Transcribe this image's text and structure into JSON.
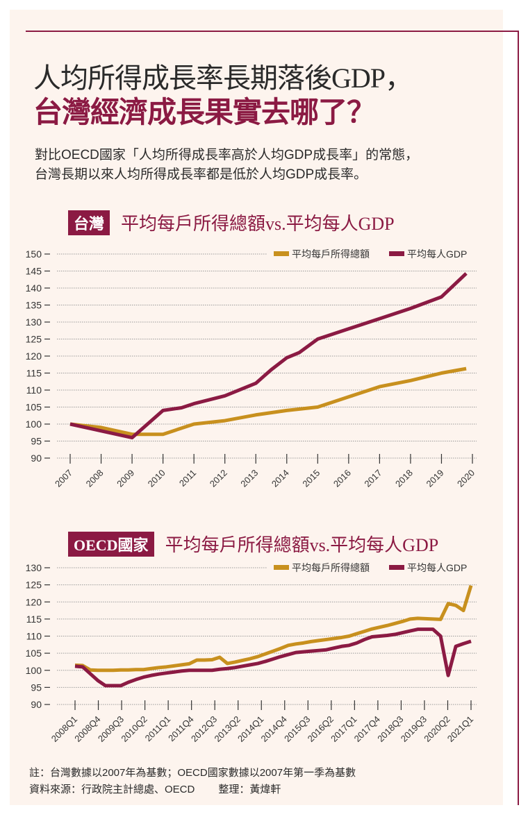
{
  "title_line1": "人均所得成長率長期落後GDP，",
  "title_line2": "台灣經濟成長果實去哪了？",
  "subtitle_line1": "對比OECD國家「人均所得成長率高於人均GDP成長率」的常態，",
  "subtitle_line2": "台灣長期以來人均所得成長率都是低於人均GDP成長率。",
  "colors": {
    "income": "#c8901e",
    "gdp": "#8b1a43",
    "accent": "#8b1a43"
  },
  "chart_data": [
    {
      "type": "line",
      "badge": "台灣",
      "title": "平均每戶所得總額vs.平均每人GDP",
      "ylim": [
        90,
        150
      ],
      "yticks": [
        90,
        95,
        100,
        105,
        110,
        115,
        120,
        125,
        130,
        135,
        140,
        145,
        150
      ],
      "xlim": [
        2007,
        2020
      ],
      "xtick_labels": [
        "2007",
        "2008",
        "2009",
        "2010",
        "2011",
        "2012",
        "2013",
        "2014",
        "2015",
        "2016",
        "2017",
        "2018",
        "2019",
        "2020"
      ],
      "grid": true,
      "legend": "top-right",
      "series": [
        {
          "name": "平均每戶所得總額",
          "color": "#c8901e",
          "x": [
            2007,
            2008,
            2009,
            2010,
            2011,
            2012,
            2013,
            2014,
            2015,
            2016,
            2017,
            2018,
            2019,
            2019.8
          ],
          "values": [
            100,
            99,
            97,
            97,
            100,
            101,
            102.7,
            104,
            105,
            108,
            111,
            112.8,
            115,
            116.3
          ]
        },
        {
          "name": "平均每人GDP",
          "color": "#8b1a43",
          "x": [
            2007,
            2008,
            2009,
            2010,
            2010.6,
            2011,
            2012,
            2013,
            2013.5,
            2014,
            2014.4,
            2015,
            2016,
            2017,
            2018,
            2019,
            2019.8
          ],
          "values": [
            100,
            98,
            96,
            104,
            104.8,
            106,
            108.3,
            112,
            116,
            119.5,
            121,
            125,
            128,
            131,
            134,
            137.4,
            144.3
          ]
        }
      ]
    },
    {
      "type": "line",
      "badge": "OECD國家",
      "title": "平均每戶所得總額vs.平均每人GDP",
      "ylim": [
        90,
        130
      ],
      "yticks": [
        90,
        95,
        100,
        105,
        110,
        115,
        120,
        125,
        130
      ],
      "x_start": "2008Q1",
      "x_end": "2021Q1",
      "xtick_labels": [
        "2008Q1",
        "2008Q4",
        "2009Q3",
        "2010Q2",
        "2011Q1",
        "2011Q4",
        "2012Q3",
        "2013Q2",
        "2014Q1",
        "2014Q4",
        "2015Q3",
        "2016Q2",
        "2017Q1",
        "2017Q4",
        "2018Q3",
        "2019Q3",
        "2020Q2",
        "2021Q1"
      ],
      "grid": true,
      "legend": "top-right",
      "series": [
        {
          "name": "平均每戶所得總額",
          "color": "#c8901e",
          "values": [
            101.5,
            101.4,
            100.1,
            100.0,
            100.0,
            100.0,
            100.1,
            100.1,
            100.2,
            100.2,
            100.5,
            100.8,
            101.0,
            101.3,
            101.6,
            101.9,
            103.0,
            103.0,
            103.1,
            103.8,
            102.0,
            102.4,
            102.9,
            103.4,
            104.0,
            104.8,
            105.6,
            106.4,
            107.3,
            107.7,
            108.0,
            108.4,
            108.7,
            109.0,
            109.3,
            109.6,
            110.0,
            110.7,
            111.4,
            112.1,
            112.6,
            113.1,
            113.7,
            114.3,
            115.0,
            115.2,
            115.1,
            115.0,
            114.9,
            119.5,
            119.0,
            117.5,
            124.8
          ]
        },
        {
          "name": "平均每人GDP",
          "color": "#8b1a43",
          "values": [
            101.2,
            101.0,
            99.0,
            97.0,
            95.5,
            95.5,
            95.5,
            96.5,
            97.3,
            98.0,
            98.5,
            98.9,
            99.2,
            99.5,
            99.8,
            100.0,
            100.0,
            100.0,
            100.0,
            100.3,
            100.5,
            100.8,
            101.2,
            101.6,
            102.0,
            102.6,
            103.3,
            104.0,
            104.6,
            105.2,
            105.4,
            105.6,
            105.8,
            106.0,
            106.5,
            107.0,
            107.3,
            108.0,
            109.0,
            109.8,
            110.0,
            110.2,
            110.5,
            111.0,
            111.5,
            112.0,
            112.0,
            112.0,
            110.0,
            98.5,
            107.0,
            107.8,
            108.5
          ]
        }
      ]
    }
  ],
  "footnote": "註：台灣數據以2007年為基數；OECD國家數據以2007年第一季為基數",
  "source": "資料來源：行政院主計總處、OECD",
  "editor": "整理：黃煒軒"
}
